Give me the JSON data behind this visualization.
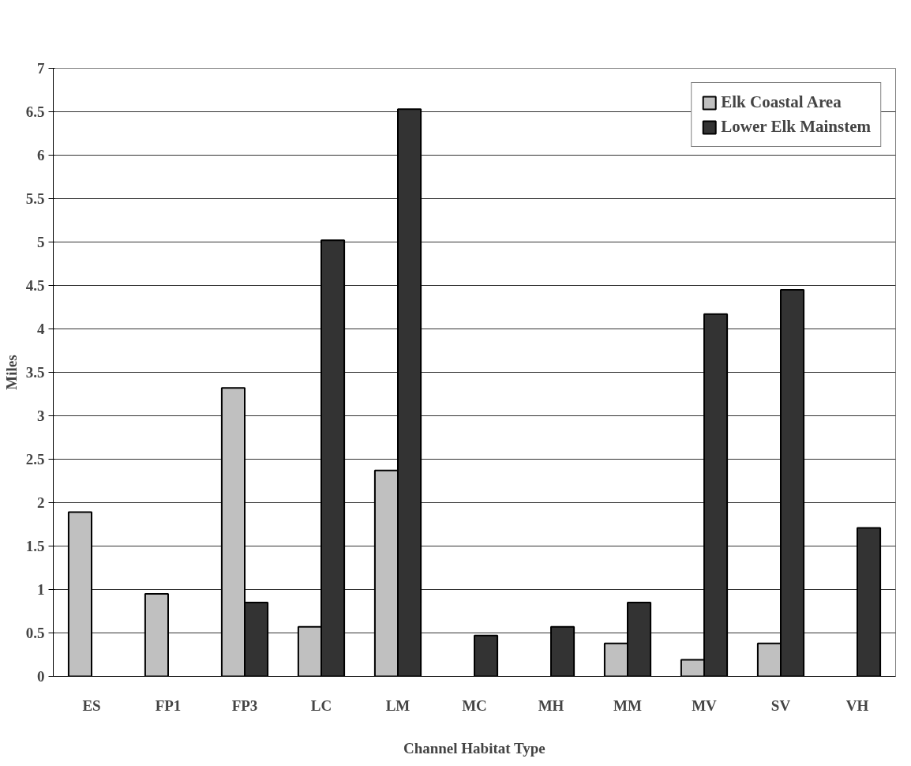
{
  "chart_data": {
    "type": "bar",
    "xlabel": "Channel Habitat Type",
    "ylabel": "Miles",
    "categories": [
      "ES",
      "FP1",
      "FP3",
      "LC",
      "LM",
      "MC",
      "MH",
      "MM",
      "MV",
      "SV",
      "VH"
    ],
    "series": [
      {
        "name": "Elk Coastal Area",
        "color": "#c0c0c0",
        "values": [
          1.89,
          0.95,
          3.32,
          0.57,
          2.37,
          null,
          null,
          0.38,
          0.19,
          0.38,
          null
        ]
      },
      {
        "name": "Lower Elk Mainstem",
        "color": "#333333",
        "values": [
          null,
          null,
          0.85,
          5.02,
          6.53,
          0.47,
          0.57,
          0.85,
          4.17,
          4.45,
          1.71
        ]
      }
    ],
    "ylim": [
      0,
      7
    ],
    "yticks": [
      0,
      0.5,
      1,
      1.5,
      2,
      2.5,
      3,
      3.5,
      4,
      4.5,
      5,
      5.5,
      6,
      6.5,
      7
    ],
    "grid": "y",
    "legend": "top right"
  }
}
